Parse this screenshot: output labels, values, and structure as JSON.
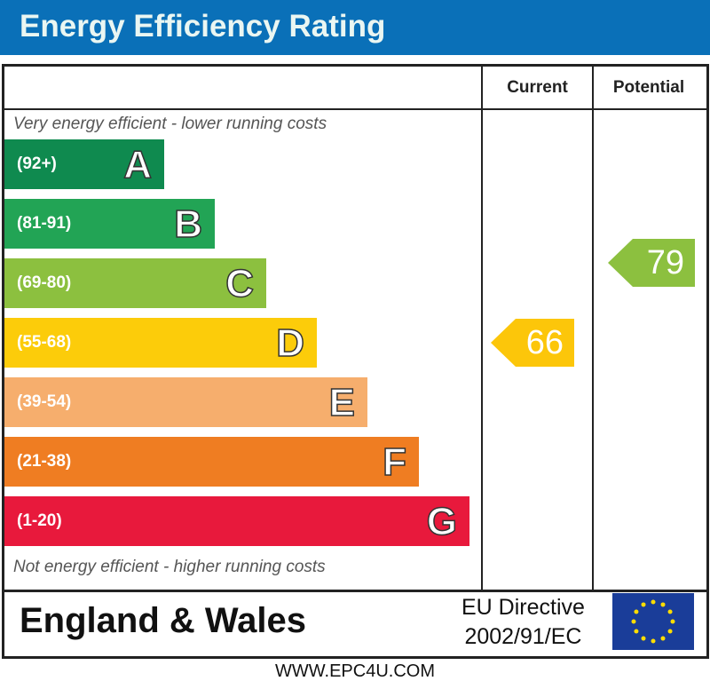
{
  "header": {
    "title": "Energy Efficiency Rating"
  },
  "columns": {
    "current": "Current",
    "potential": "Potential"
  },
  "notes": {
    "top": "Very energy efficient - lower running costs",
    "bottom": "Not energy efficient - higher running costs"
  },
  "chart_data": {
    "type": "bar",
    "title": "Energy Efficiency Rating",
    "bands": [
      {
        "letter": "A",
        "range": "(92+)",
        "color": "#0f8a4f"
      },
      {
        "letter": "B",
        "range": "(81-91)",
        "color": "#22a455"
      },
      {
        "letter": "C",
        "range": "(69-80)",
        "color": "#8cc03f"
      },
      {
        "letter": "D",
        "range": "(55-68)",
        "color": "#fccc0a"
      },
      {
        "letter": "E",
        "range": "(39-54)",
        "color": "#f6ae6d"
      },
      {
        "letter": "F",
        "range": "(21-38)",
        "color": "#ef7d22"
      },
      {
        "letter": "G",
        "range": "(1-20)",
        "color": "#e8193c"
      }
    ],
    "current": {
      "value": "66",
      "band": "D",
      "color": "#fcc60a"
    },
    "potential": {
      "value": "79",
      "band": "C",
      "color": "#8cc03f"
    }
  },
  "footer": {
    "region": "England & Wales",
    "directive_line1": "EU Directive",
    "directive_line2": "2002/91/EC",
    "website": "WWW.EPC4U.COM"
  },
  "icons": {
    "flag": "eu-flag-icon"
  }
}
